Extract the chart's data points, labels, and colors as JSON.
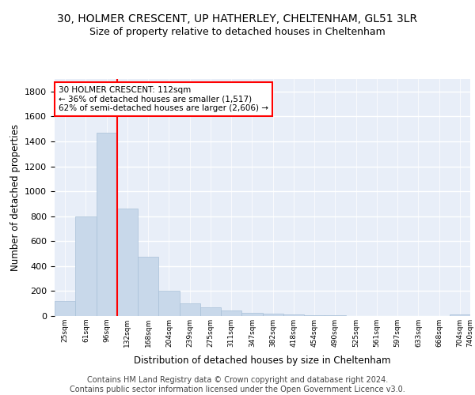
{
  "title1": "30, HOLMER CRESCENT, UP HATHERLEY, CHELTENHAM, GL51 3LR",
  "title2": "Size of property relative to detached houses in Cheltenham",
  "xlabel": "Distribution of detached houses by size in Cheltenham",
  "ylabel": "Number of detached properties",
  "bar_values": [
    120,
    795,
    1467,
    863,
    472,
    200,
    103,
    68,
    45,
    28,
    22,
    10,
    7,
    5,
    3,
    2,
    1,
    1,
    1,
    15
  ],
  "bar_labels": [
    "25sqm",
    "61sqm",
    "96sqm",
    "132sqm",
    "168sqm",
    "204sqm",
    "239sqm",
    "275sqm",
    "311sqm",
    "347sqm",
    "382sqm",
    "418sqm",
    "454sqm",
    "490sqm",
    "525sqm",
    "561sqm",
    "597sqm",
    "633sqm",
    "668sqm",
    "704sqm",
    "740sqm"
  ],
  "bar_color": "#c8d8ea",
  "bar_edgecolor": "#a8c0d8",
  "annotation_box_text": "30 HOLMER CRESCENT: 112sqm\n← 36% of detached houses are smaller (1,517)\n62% of semi-detached houses are larger (2,606) →",
  "annotation_box_color": "white",
  "annotation_box_edgecolor": "red",
  "vline_color": "red",
  "ylim": [
    0,
    1900
  ],
  "yticks": [
    0,
    200,
    400,
    600,
    800,
    1000,
    1200,
    1400,
    1600,
    1800
  ],
  "footer_text": "Contains HM Land Registry data © Crown copyright and database right 2024.\nContains public sector information licensed under the Open Government Licence v3.0.",
  "bg_color": "#e8eef8",
  "grid_color": "white",
  "title1_fontsize": 10,
  "title2_fontsize": 9,
  "xlabel_fontsize": 8.5,
  "ylabel_fontsize": 8.5,
  "footer_fontsize": 7
}
